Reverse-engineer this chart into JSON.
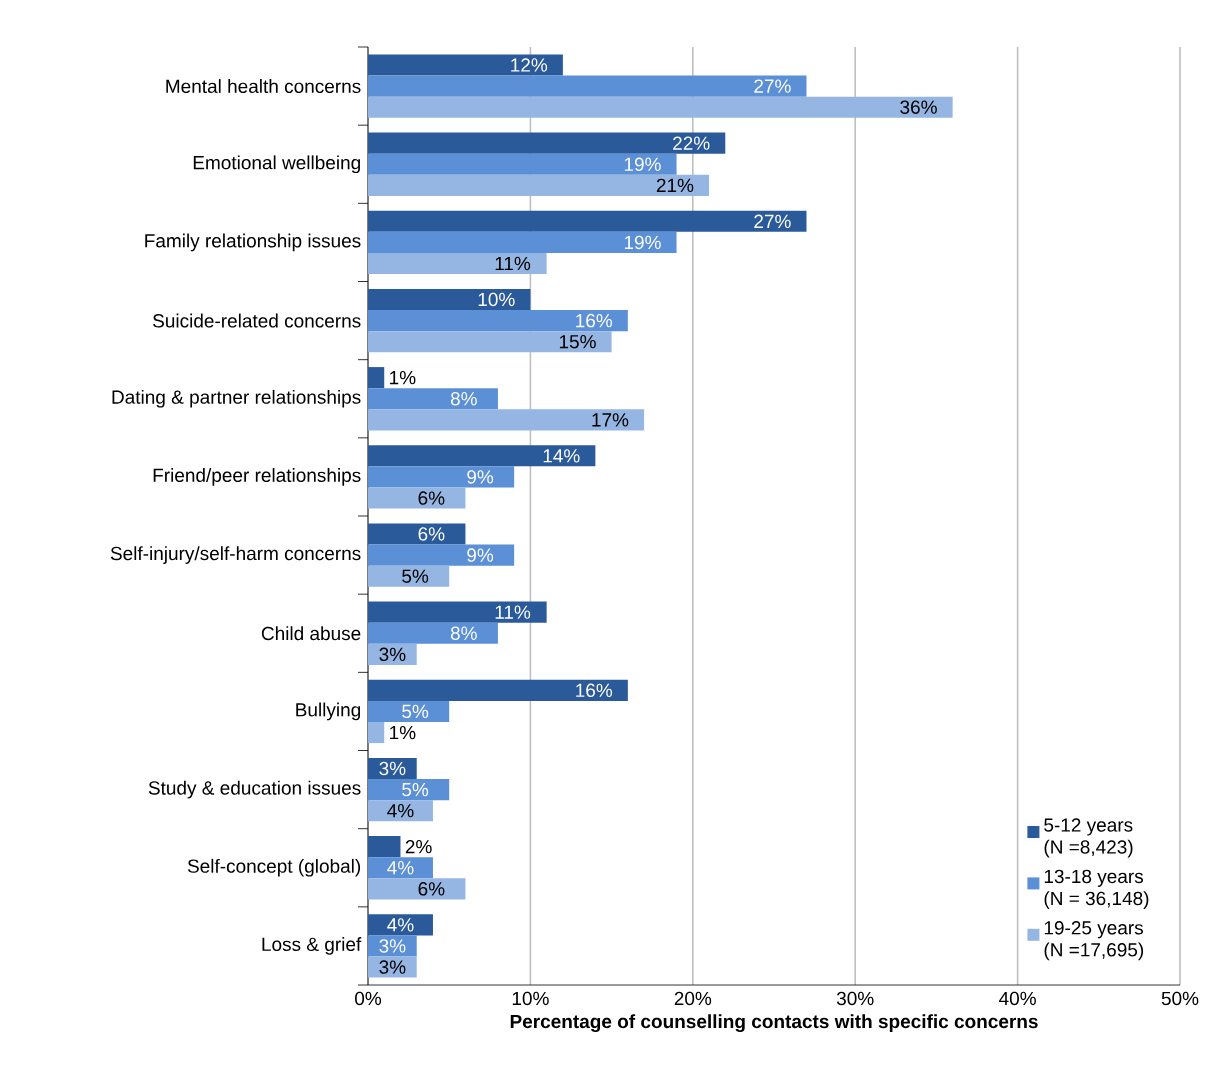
{
  "chart_data": {
    "type": "bar",
    "orientation": "horizontal",
    "xlabel": "Percentage of counselling contacts with specific concerns",
    "categories": [
      "Mental health concerns",
      "Emotional wellbeing",
      "Family relationship issues",
      "Suicide-related concerns",
      "Dating & partner relationships",
      "Friend/peer relationships",
      "Self-injury/self-harm concerns",
      "Child abuse",
      "Bullying",
      "Study & education issues",
      "Self-concept (global)",
      "Loss & grief"
    ],
    "series": [
      {
        "name": "5-12 years (N =8,423)",
        "color": "#2a5a9a",
        "values": [
          12,
          22,
          27,
          10,
          1,
          14,
          6,
          11,
          16,
          3,
          2,
          4
        ],
        "value_labels": [
          "12%",
          "22%",
          "27%",
          "10%",
          "1%",
          "14%",
          "6%",
          "11%",
          "16%",
          "3%",
          "2%",
          "4%"
        ]
      },
      {
        "name": "13-18 years (N = 36,148)",
        "color": "#5b8fd6",
        "values": [
          27,
          19,
          19,
          16,
          8,
          9,
          9,
          8,
          5,
          5,
          4,
          3
        ],
        "value_labels": [
          "27%",
          "19%",
          "19%",
          "16%",
          "8%",
          "9%",
          "9%",
          "8%",
          "5%",
          "5%",
          "4%",
          "3%"
        ]
      },
      {
        "name": "19-25 years (N =17,695)",
        "color": "#95b6e3",
        "values": [
          36,
          21,
          11,
          15,
          17,
          6,
          5,
          3,
          1,
          4,
          6,
          3
        ],
        "value_labels": [
          "36%",
          "21%",
          "11%",
          "15%",
          "17%",
          "6%",
          "5%",
          "3%",
          "1%",
          "4%",
          "6%",
          "3%"
        ]
      }
    ],
    "xlim": [
      0,
      50
    ],
    "xticks": [
      {
        "value": 0,
        "label": "0%"
      },
      {
        "value": 10,
        "label": "10%"
      },
      {
        "value": 20,
        "label": "20%"
      },
      {
        "value": 30,
        "label": "30%"
      },
      {
        "value": 40,
        "label": "40%"
      },
      {
        "value": 50,
        "label": "50%"
      }
    ],
    "grid": "x",
    "legend": "bottom right"
  }
}
